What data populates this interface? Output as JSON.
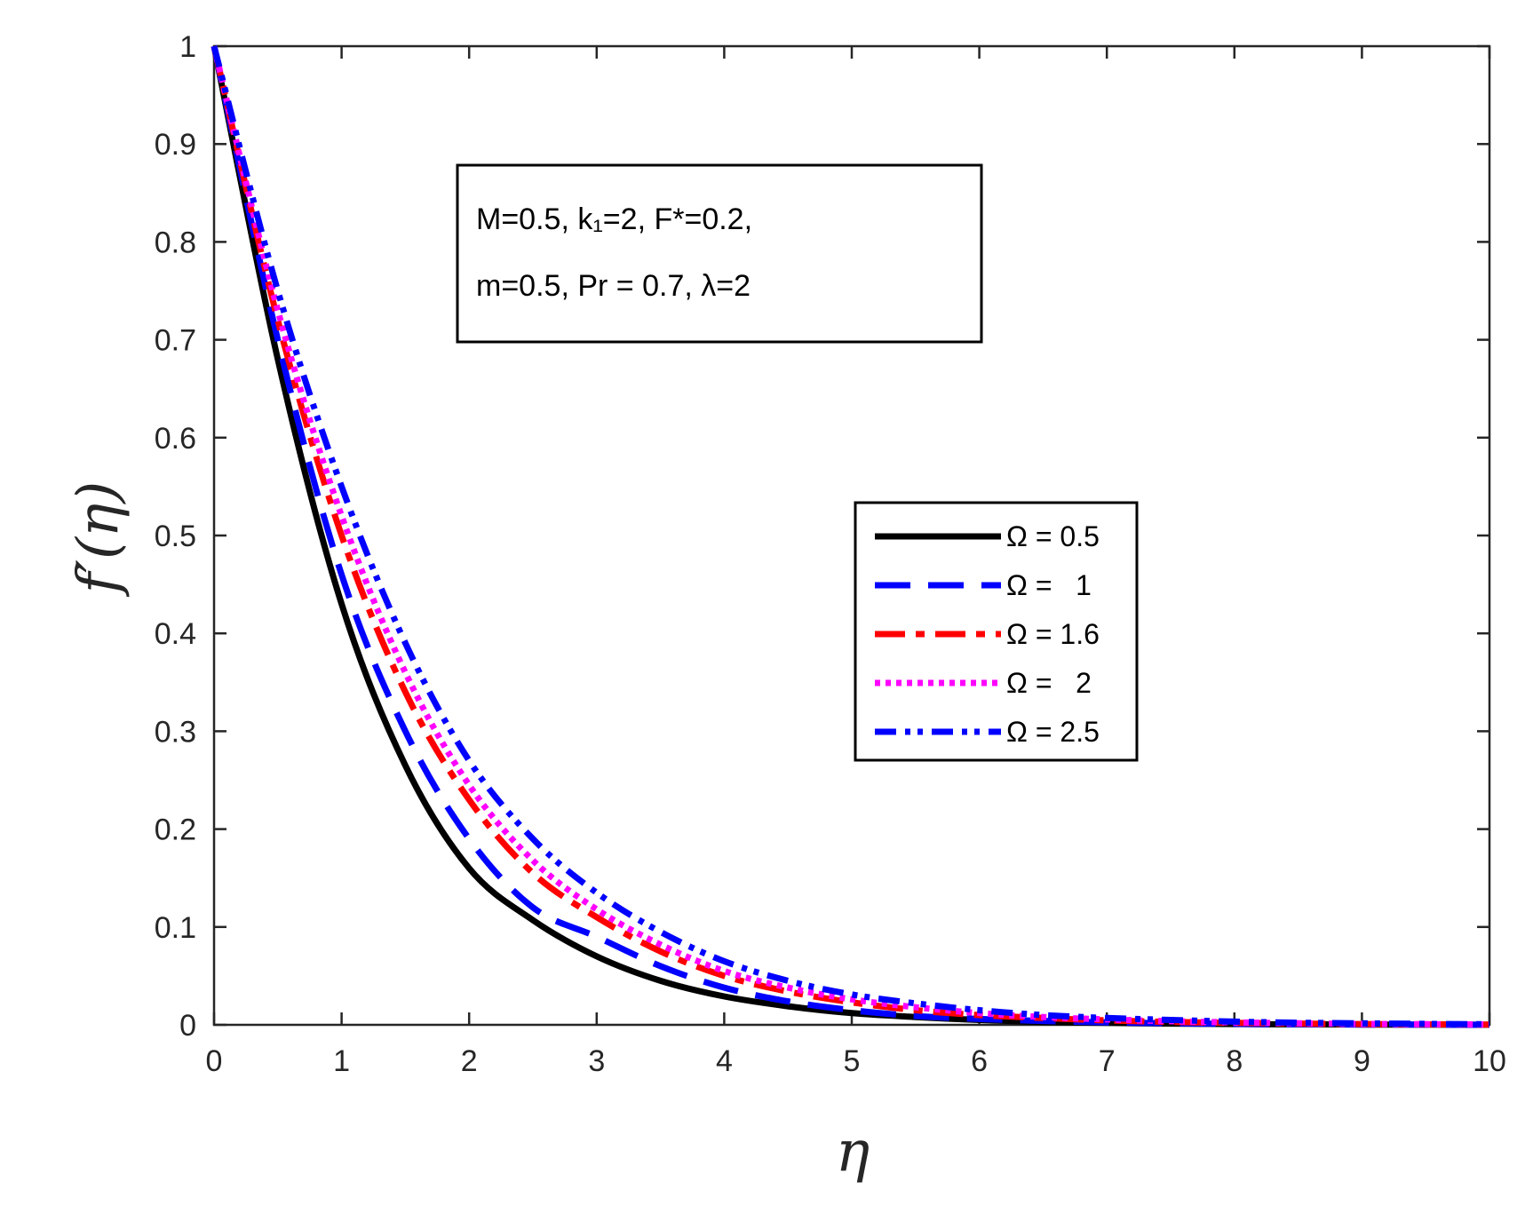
{
  "chart_data": {
    "type": "line",
    "xlabel": "η",
    "ylabel": "f′(η)",
    "xlim": [
      0,
      10
    ],
    "ylim": [
      0,
      1
    ],
    "xticks": [
      "0",
      "1",
      "2",
      "3",
      "4",
      "5",
      "6",
      "7",
      "8",
      "9",
      "10"
    ],
    "yticks": [
      "0",
      "0.1",
      "0.2",
      "0.3",
      "0.4",
      "0.5",
      "0.6",
      "0.7",
      "0.8",
      "0.9",
      "1"
    ],
    "grid": false,
    "box": true,
    "legend_position": "right",
    "annotation": {
      "line1": "M=0.5, k₁=2, F*=0.2,",
      "line2": "m=0.5, Pr = 0.7, λ=2"
    },
    "x": [
      0,
      0.5,
      1,
      1.5,
      2,
      2.5,
      3,
      3.5,
      4,
      4.5,
      5,
      5.5,
      6,
      6.5,
      7,
      7.5,
      8,
      8.5,
      9,
      9.5,
      10
    ],
    "series": [
      {
        "name": "Ω = 0.5",
        "color": "#000000",
        "style": "solid",
        "values": [
          1,
          0.68,
          0.43,
          0.265,
          0.16,
          0.107,
          0.07,
          0.045,
          0.029,
          0.019,
          0.012,
          0.008,
          0.005,
          0.003,
          0.002,
          0.0013,
          0.0008,
          0.0005,
          0.0003,
          0.0002,
          0.0001
        ]
      },
      {
        "name": "Ω =   1",
        "color": "#0000ff",
        "style": "dashed",
        "values": [
          1,
          0.7,
          0.46,
          0.3,
          0.19,
          0.12,
          0.09,
          0.06,
          0.038,
          0.024,
          0.015,
          0.009,
          0.006,
          0.004,
          0.0025,
          0.0016,
          0.001,
          0.0006,
          0.0004,
          0.0002,
          0.0001
        ]
      },
      {
        "name": "Ω = 1.6",
        "color": "#ff0000",
        "style": "dashdot",
        "values": [
          1,
          0.72,
          0.5,
          0.34,
          0.23,
          0.155,
          0.11,
          0.075,
          0.05,
          0.034,
          0.023,
          0.015,
          0.01,
          0.007,
          0.0045,
          0.003,
          0.002,
          0.0013,
          0.0008,
          0.0005,
          0.0003
        ]
      },
      {
        "name": "Ω =   2",
        "color": "#ff00ff",
        "style": "dotted",
        "values": [
          1,
          0.73,
          0.52,
          0.36,
          0.245,
          0.168,
          0.118,
          0.082,
          0.055,
          0.038,
          0.026,
          0.018,
          0.012,
          0.008,
          0.0055,
          0.0037,
          0.0025,
          0.0016,
          0.001,
          0.0006,
          0.0004
        ]
      },
      {
        "name": "Ω = 2.5",
        "color": "#0000ff",
        "style": "dashdotdot",
        "values": [
          1,
          0.75,
          0.55,
          0.39,
          0.27,
          0.19,
          0.135,
          0.095,
          0.065,
          0.045,
          0.031,
          0.022,
          0.015,
          0.01,
          0.007,
          0.005,
          0.0033,
          0.0022,
          0.0015,
          0.001,
          0.0006
        ]
      }
    ]
  }
}
